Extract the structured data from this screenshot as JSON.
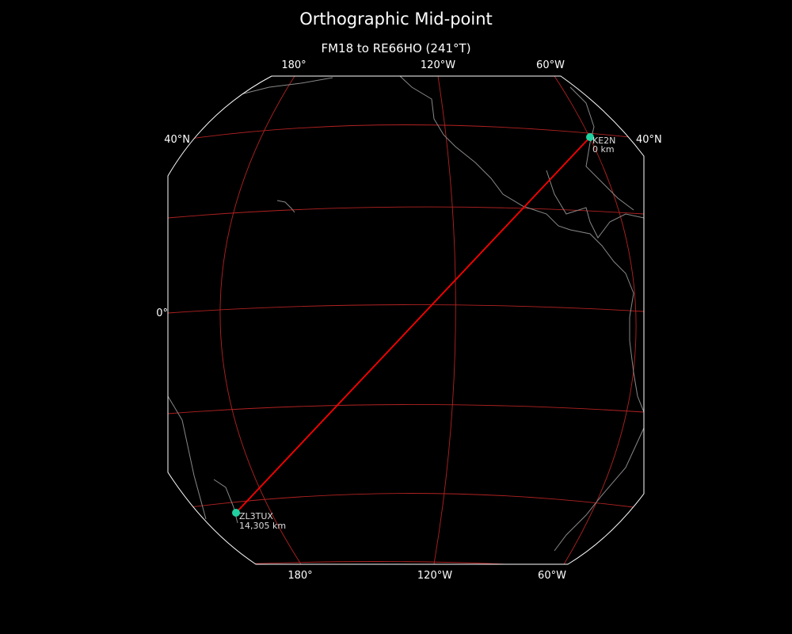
{
  "title": "Orthographic Mid-point",
  "subtitle": "FM18 to RE66HO (241°T)",
  "projection": "orthographic",
  "colors": {
    "background": "#000000",
    "gridline": "#b22222",
    "path": "#ff0000",
    "station": "#20d0a0",
    "coastline": "#888888",
    "border": "#ffffff"
  },
  "top_ticks": [
    "180°",
    "120°W",
    "60°W"
  ],
  "bottom_ticks": [
    "180°",
    "120°W",
    "60°W"
  ],
  "left_ticks": [
    "40°N",
    "0°"
  ],
  "right_ticks": [
    "40°N"
  ],
  "stations": [
    {
      "call": "KE2N",
      "distance": "0 km"
    },
    {
      "call": "ZL3TUX",
      "distance": "14,305 km"
    }
  ]
}
